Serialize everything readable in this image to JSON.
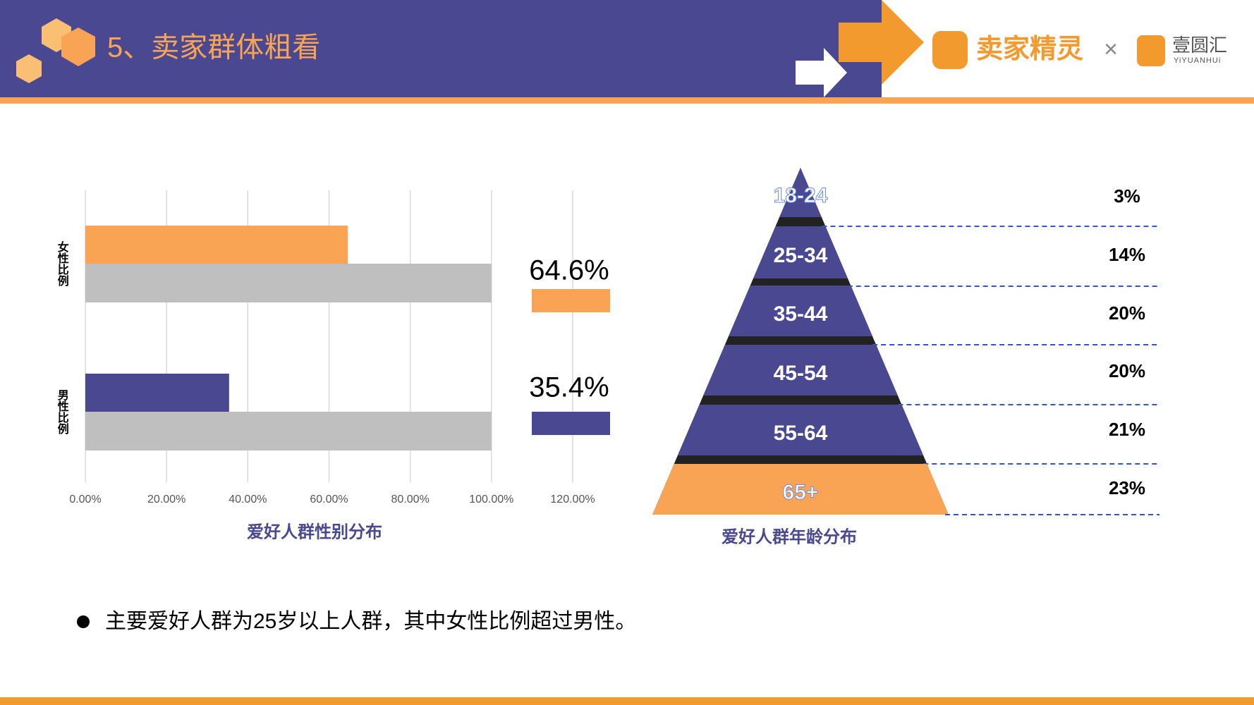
{
  "header": {
    "title": "5、卖家群体粗看",
    "brand": "卖家精灵",
    "times": "×",
    "partner": "壹圆汇",
    "partner_sub": "YiYUANHUi"
  },
  "chart_data": [
    {
      "type": "bar",
      "title": "爱好人群性别分布",
      "categories": [
        "女性比例",
        "男性比例"
      ],
      "series": [
        {
          "colors": [
            "#f9a455",
            "#4a4891"
          ],
          "values": [
            64.6,
            35.4
          ],
          "value_labels": [
            "64.6%",
            "35.4%"
          ]
        },
        {
          "color": "#bfbfbf",
          "values": [
            100,
            100
          ]
        }
      ],
      "xlim": [
        0,
        120
      ],
      "xticks": [
        {
          "value": 0,
          "label": "0.00%"
        },
        {
          "value": 20,
          "label": "20.00%"
        },
        {
          "value": 40,
          "label": "40.00%"
        },
        {
          "value": 60,
          "label": "60.00%"
        },
        {
          "value": 80,
          "label": "80.00%"
        },
        {
          "value": 100,
          "label": "100.00%"
        },
        {
          "value": 120,
          "label": "120.00%"
        }
      ],
      "grid": true
    },
    {
      "type": "pyramid",
      "title": "爱好人群年龄分布",
      "categories": [
        "18-24",
        "25-34",
        "35-44",
        "45-54",
        "55-64",
        "65+"
      ],
      "values": [
        3,
        14,
        20,
        20,
        21,
        23
      ],
      "value_labels": [
        "3%",
        "14%",
        "20%",
        "20%",
        "21%",
        "23%"
      ],
      "colors": [
        "#4a4891",
        "#4a4891",
        "#4a4891",
        "#4a4891",
        "#4a4891",
        "#f9a455"
      ]
    }
  ],
  "bullet": "主要爱好人群为25岁以上人群，其中女性比例超过男性。"
}
